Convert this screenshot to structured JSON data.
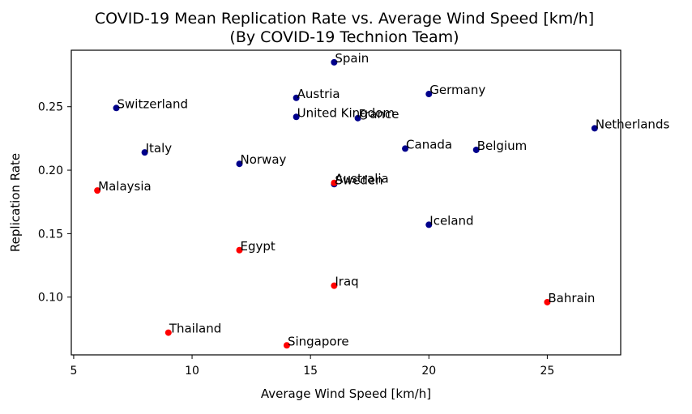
{
  "chart_data": {
    "type": "scatter",
    "title": "COVID-19 Mean Replication Rate vs. Average Wind Speed [km/h]",
    "subtitle": "(By COVID-19 Technion Team)",
    "xlabel": "Average Wind Speed [km/h]",
    "ylabel": "Replication Rate",
    "xlim": [
      4.9,
      28.1
    ],
    "ylim": [
      0.0545,
      0.2945
    ],
    "xticks": [
      5,
      10,
      15,
      20,
      25
    ],
    "xtick_labels": [
      "5",
      "10",
      "15",
      "20",
      "25"
    ],
    "yticks": [
      0.1,
      0.15,
      0.2,
      0.25
    ],
    "ytick_labels": [
      "0.10",
      "0.15",
      "0.20",
      "0.25"
    ],
    "grid": false,
    "colors": {
      "dark": "#00008b",
      "red": "#ff0000"
    },
    "points": [
      {
        "label": "Spain",
        "x": 16.0,
        "y": 0.285,
        "color": "#00008b"
      },
      {
        "label": "Austria",
        "x": 14.4,
        "y": 0.257,
        "color": "#00008b"
      },
      {
        "label": "Germany",
        "x": 20.0,
        "y": 0.26,
        "color": "#00008b"
      },
      {
        "label": "Switzerland",
        "x": 6.8,
        "y": 0.249,
        "color": "#00008b"
      },
      {
        "label": "United Kingdom",
        "x": 14.4,
        "y": 0.242,
        "color": "#00008b"
      },
      {
        "label": "France",
        "x": 17.0,
        "y": 0.241,
        "color": "#00008b"
      },
      {
        "label": "Netherlands",
        "x": 27.0,
        "y": 0.233,
        "color": "#00008b"
      },
      {
        "label": "Canada",
        "x": 19.0,
        "y": 0.217,
        "color": "#00008b"
      },
      {
        "label": "Belgium",
        "x": 22.0,
        "y": 0.216,
        "color": "#00008b"
      },
      {
        "label": "Italy",
        "x": 8.0,
        "y": 0.214,
        "color": "#00008b"
      },
      {
        "label": "Norway",
        "x": 12.0,
        "y": 0.205,
        "color": "#00008b"
      },
      {
        "label": "Sweden",
        "x": 16.0,
        "y": 0.189,
        "color": "#00008b"
      },
      {
        "label": "Australia",
        "x": 16.0,
        "y": 0.19,
        "color": "#ff0000"
      },
      {
        "label": "Malaysia",
        "x": 6.0,
        "y": 0.184,
        "color": "#ff0000"
      },
      {
        "label": "Iceland",
        "x": 20.0,
        "y": 0.157,
        "color": "#00008b"
      },
      {
        "label": "Egypt",
        "x": 12.0,
        "y": 0.137,
        "color": "#ff0000"
      },
      {
        "label": "Iraq",
        "x": 16.0,
        "y": 0.109,
        "color": "#ff0000"
      },
      {
        "label": "Bahrain",
        "x": 25.0,
        "y": 0.096,
        "color": "#ff0000"
      },
      {
        "label": "Thailand",
        "x": 9.0,
        "y": 0.072,
        "color": "#ff0000"
      },
      {
        "label": "Singapore",
        "x": 14.0,
        "y": 0.062,
        "color": "#ff0000"
      }
    ]
  }
}
